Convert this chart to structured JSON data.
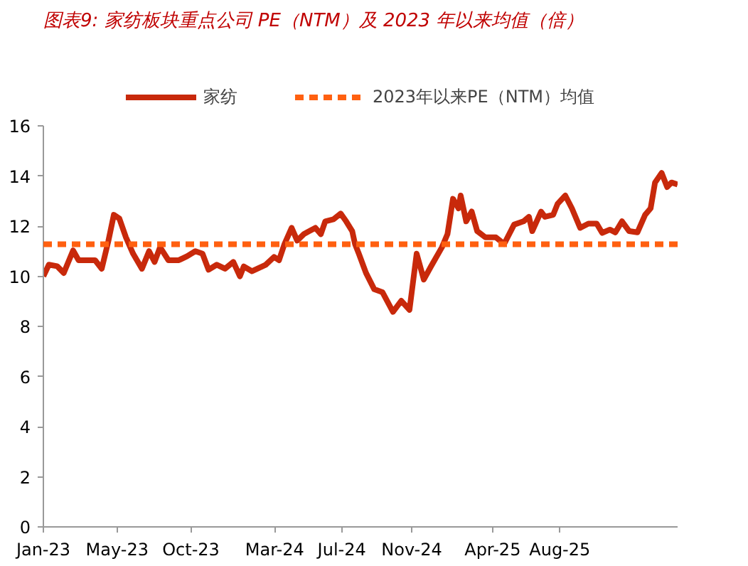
{
  "chart_data": {
    "type": "line",
    "title": "图表9:  家纺板块重点公司 PE（NTM）及 2023 年以来均值（倍）",
    "x": [
      "2023-01-06",
      "2023-01-16",
      "2023-01-31",
      "2023-02-12",
      "2023-03-01",
      "2023-03-11",
      "2023-03-26",
      "2023-04-10",
      "2023-04-22",
      "2023-05-04",
      "2023-05-14",
      "2023-05-24",
      "2023-06-05",
      "2023-06-18",
      "2023-07-04",
      "2023-07-17",
      "2023-07-27",
      "2023-08-06",
      "2023-08-21",
      "2023-09-09",
      "2023-09-24",
      "2023-10-09",
      "2023-10-22",
      "2023-11-02",
      "2023-11-17",
      "2023-12-02",
      "2023-12-17",
      "2023-12-29",
      "2024-01-05",
      "2024-01-20",
      "2024-02-14",
      "2024-02-29",
      "2024-03-09",
      "2024-03-19",
      "2024-04-01",
      "2024-04-11",
      "2024-04-23",
      "2024-05-03",
      "2024-05-14",
      "2024-05-24",
      "2024-06-01",
      "2024-06-16",
      "2024-06-29",
      "2024-07-09",
      "2024-07-20",
      "2024-07-25",
      "2024-08-01",
      "2024-08-14",
      "2024-08-29",
      "2024-09-13",
      "2024-10-02",
      "2024-10-17",
      "2024-11-01",
      "2024-11-14",
      "2024-11-27",
      "2024-12-10",
      "2024-12-30",
      "2025-01-09",
      "2025-01-19",
      "2025-01-29",
      "2025-02-02",
      "2025-02-12",
      "2025-02-22",
      "2025-03-04",
      "2025-03-19",
      "2025-04-07",
      "2025-04-22",
      "2025-05-10",
      "2025-05-27",
      "2025-06-06",
      "2025-06-12",
      "2025-06-28",
      "2025-07-05",
      "2025-07-20",
      "2025-07-28",
      "2025-08-11",
      "2025-08-23",
      "2025-09-07",
      "2025-09-22",
      "2025-10-07",
      "2025-10-17",
      "2025-10-31",
      "2025-11-10",
      "2025-11-22",
      "2025-12-05",
      "2025-12-20",
      "2026-01-03",
      "2026-01-13",
      "2026-01-21",
      "2026-02-02",
      "2026-02-12",
      "2026-02-20",
      "2026-03-03"
    ],
    "series": [
      {
        "name": "家纺",
        "color": "#c8290b",
        "values": [
          10.0,
          10.46,
          10.4,
          10.13,
          11.03,
          10.64,
          10.64,
          10.64,
          10.3,
          11.4,
          12.45,
          12.3,
          11.55,
          10.9,
          10.3,
          11.0,
          10.57,
          11.16,
          10.64,
          10.64,
          10.8,
          11.0,
          10.9,
          10.26,
          10.46,
          10.3,
          10.57,
          10.0,
          10.39,
          10.2,
          10.46,
          10.77,
          10.64,
          11.29,
          11.93,
          11.42,
          11.68,
          11.8,
          11.93,
          11.68,
          12.19,
          12.27,
          12.5,
          12.19,
          11.8,
          11.29,
          10.9,
          10.13,
          9.48,
          9.36,
          8.58,
          9.02,
          8.66,
          10.9,
          9.87,
          10.39,
          11.16,
          11.68,
          13.09,
          12.71,
          13.22,
          12.19,
          12.58,
          11.8,
          11.55,
          11.55,
          11.29,
          12.06,
          12.19,
          12.37,
          11.8,
          12.58,
          12.37,
          12.45,
          12.89,
          13.22,
          12.71,
          11.93,
          12.1,
          12.1,
          11.73,
          11.86,
          11.75,
          12.19,
          11.8,
          11.75,
          12.45,
          12.71,
          13.74,
          14.12,
          13.56,
          13.74,
          13.66
        ]
      }
    ],
    "ref_lines": [
      {
        "axis": "y",
        "value": 11.28,
        "label": "2023年以来PE（NTM）均值",
        "color": "#ff6010",
        "line_style": "dashed"
      }
    ],
    "xlim": [
      "2023-01-06",
      "2026-03-03"
    ],
    "xticks": [
      {
        "value": "2023-01-06",
        "label": "Jan-23"
      },
      {
        "value": "2023-05-20",
        "label": "May-23"
      },
      {
        "value": "2023-10-01",
        "label": "Oct-23"
      },
      {
        "value": "2024-03-01",
        "label": "Mar-24"
      },
      {
        "value": "2024-07-01",
        "label": "Jul-24"
      },
      {
        "value": "2024-11-05",
        "label": "Nov-24"
      },
      {
        "value": "2025-04-01",
        "label": "Apr-25"
      },
      {
        "value": "2025-08-01",
        "label": "Aug-25"
      }
    ],
    "ylim": [
      0,
      16
    ],
    "yticks": [
      0,
      2,
      4,
      6,
      8,
      10,
      12,
      14,
      16
    ],
    "grid": false,
    "legend": "top",
    "marker": "none",
    "line_style": "solid"
  }
}
